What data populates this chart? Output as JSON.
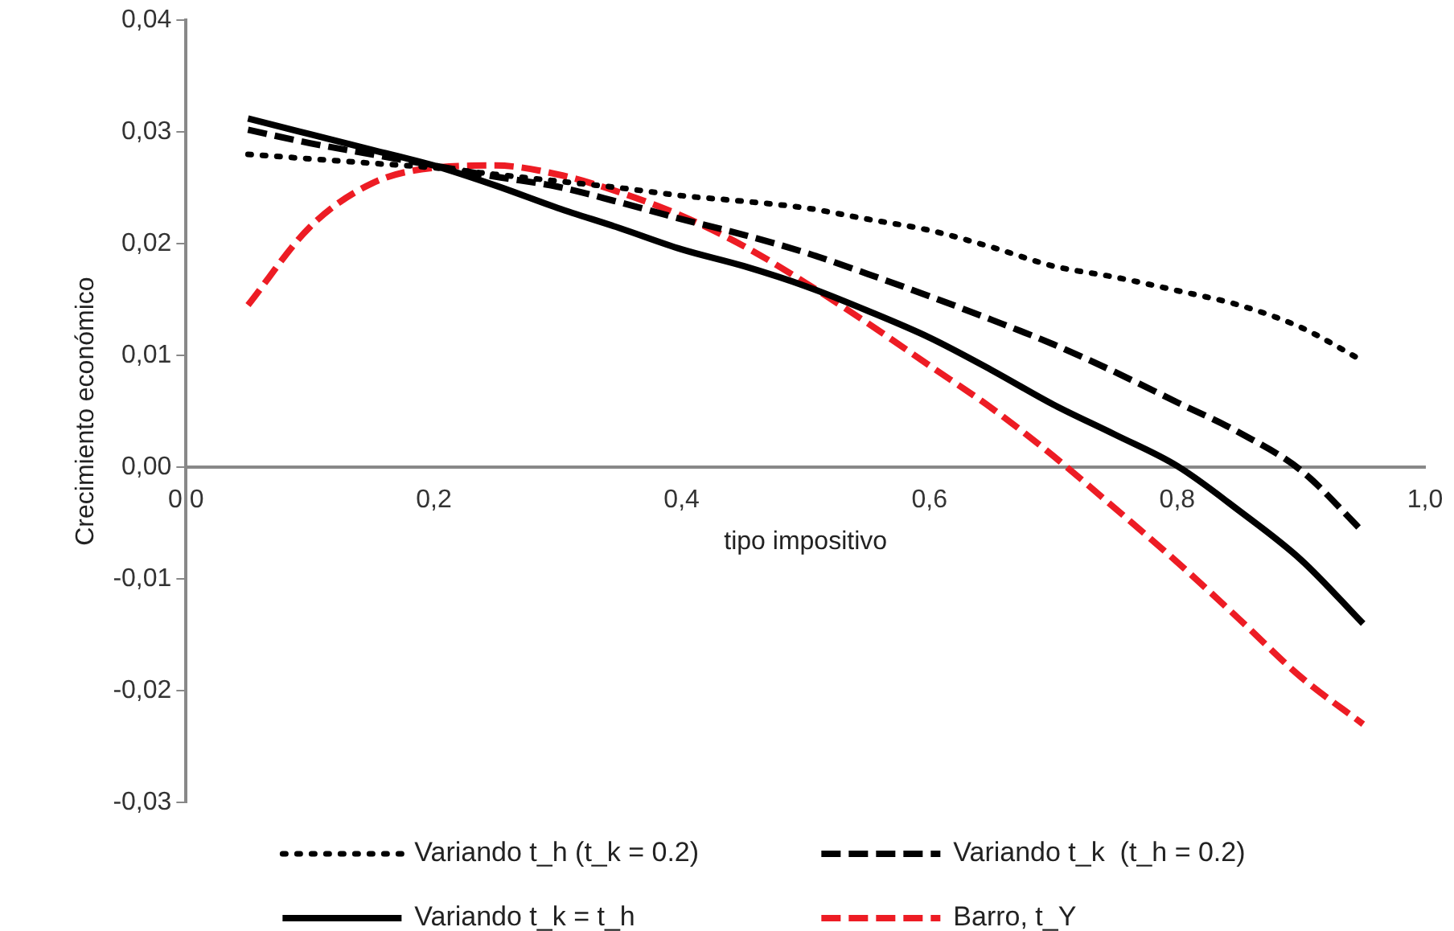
{
  "chart_data": {
    "type": "line",
    "xlabel": "tipo impositivo",
    "ylabel": "Crecimiento económico",
    "x": [
      0.05,
      0.1,
      0.15,
      0.2,
      0.25,
      0.3,
      0.35,
      0.4,
      0.45,
      0.5,
      0.55,
      0.6,
      0.65,
      0.7,
      0.75,
      0.8,
      0.85,
      0.9,
      0.95
    ],
    "series": [
      {
        "name": "Variando t_h (t_k = 0.2)",
        "color": "#000000",
        "line_style": "dotted",
        "values": [
          0.028,
          0.0276,
          0.0272,
          0.0268,
          0.0262,
          0.0256,
          0.025,
          0.0243,
          0.0238,
          0.0232,
          0.0222,
          0.0212,
          0.0197,
          0.018,
          0.017,
          0.0158,
          0.0145,
          0.0125,
          0.0095
        ]
      },
      {
        "name": "Variando t_k  (t_h = 0.2)",
        "color": "#000000",
        "line_style": "dashed",
        "values": [
          0.0302,
          0.029,
          0.028,
          0.027,
          0.026,
          0.0251,
          0.0237,
          0.0222,
          0.0208,
          0.0192,
          0.0173,
          0.0153,
          0.0132,
          0.011,
          0.0085,
          0.0058,
          0.0031,
          -0.0003,
          -0.0058
        ]
      },
      {
        "name": "Variando t_k = t_h",
        "color": "#000000",
        "line_style": "solid",
        "values": [
          0.0312,
          0.0298,
          0.0284,
          0.027,
          0.0252,
          0.0232,
          0.0214,
          0.0195,
          0.018,
          0.0162,
          0.014,
          0.0116,
          0.0087,
          0.0056,
          0.0029,
          0.0001,
          -0.0039,
          -0.0083,
          -0.014
        ]
      },
      {
        "name": "Barro, t_Y",
        "color": "#ed1c24",
        "line_style": "dashed",
        "values": [
          0.0145,
          0.0215,
          0.0254,
          0.0268,
          0.027,
          0.0262,
          0.0246,
          0.0225,
          0.0198,
          0.0165,
          0.0129,
          0.0091,
          0.0053,
          0.001,
          -0.0037,
          -0.0085,
          -0.0136,
          -0.0188,
          -0.023
        ]
      }
    ],
    "xlim": [
      0,
      1
    ],
    "xticks": [
      {
        "value": 0,
        "label": "0,0"
      },
      {
        "value": 0.2,
        "label": "0,2"
      },
      {
        "value": 0.4,
        "label": "0,4"
      },
      {
        "value": 0.6,
        "label": "0,6"
      },
      {
        "value": 0.8,
        "label": "0,8"
      },
      {
        "value": 1,
        "label": "1,0"
      }
    ],
    "ylim": [
      -0.03,
      0.04
    ],
    "yticks": [
      {
        "value": -0.03,
        "label": "-0,03"
      },
      {
        "value": -0.02,
        "label": "-0,02"
      },
      {
        "value": -0.01,
        "label": "-0,01"
      },
      {
        "value": 0,
        "label": "0,00"
      },
      {
        "value": 0.01,
        "label": "0,01"
      },
      {
        "value": 0.02,
        "label": "0,02"
      },
      {
        "value": 0.03,
        "label": "0,03"
      },
      {
        "value": 0.04,
        "label": "0,04"
      }
    ],
    "grid": false,
    "legend": "bottom",
    "marker": "none"
  }
}
